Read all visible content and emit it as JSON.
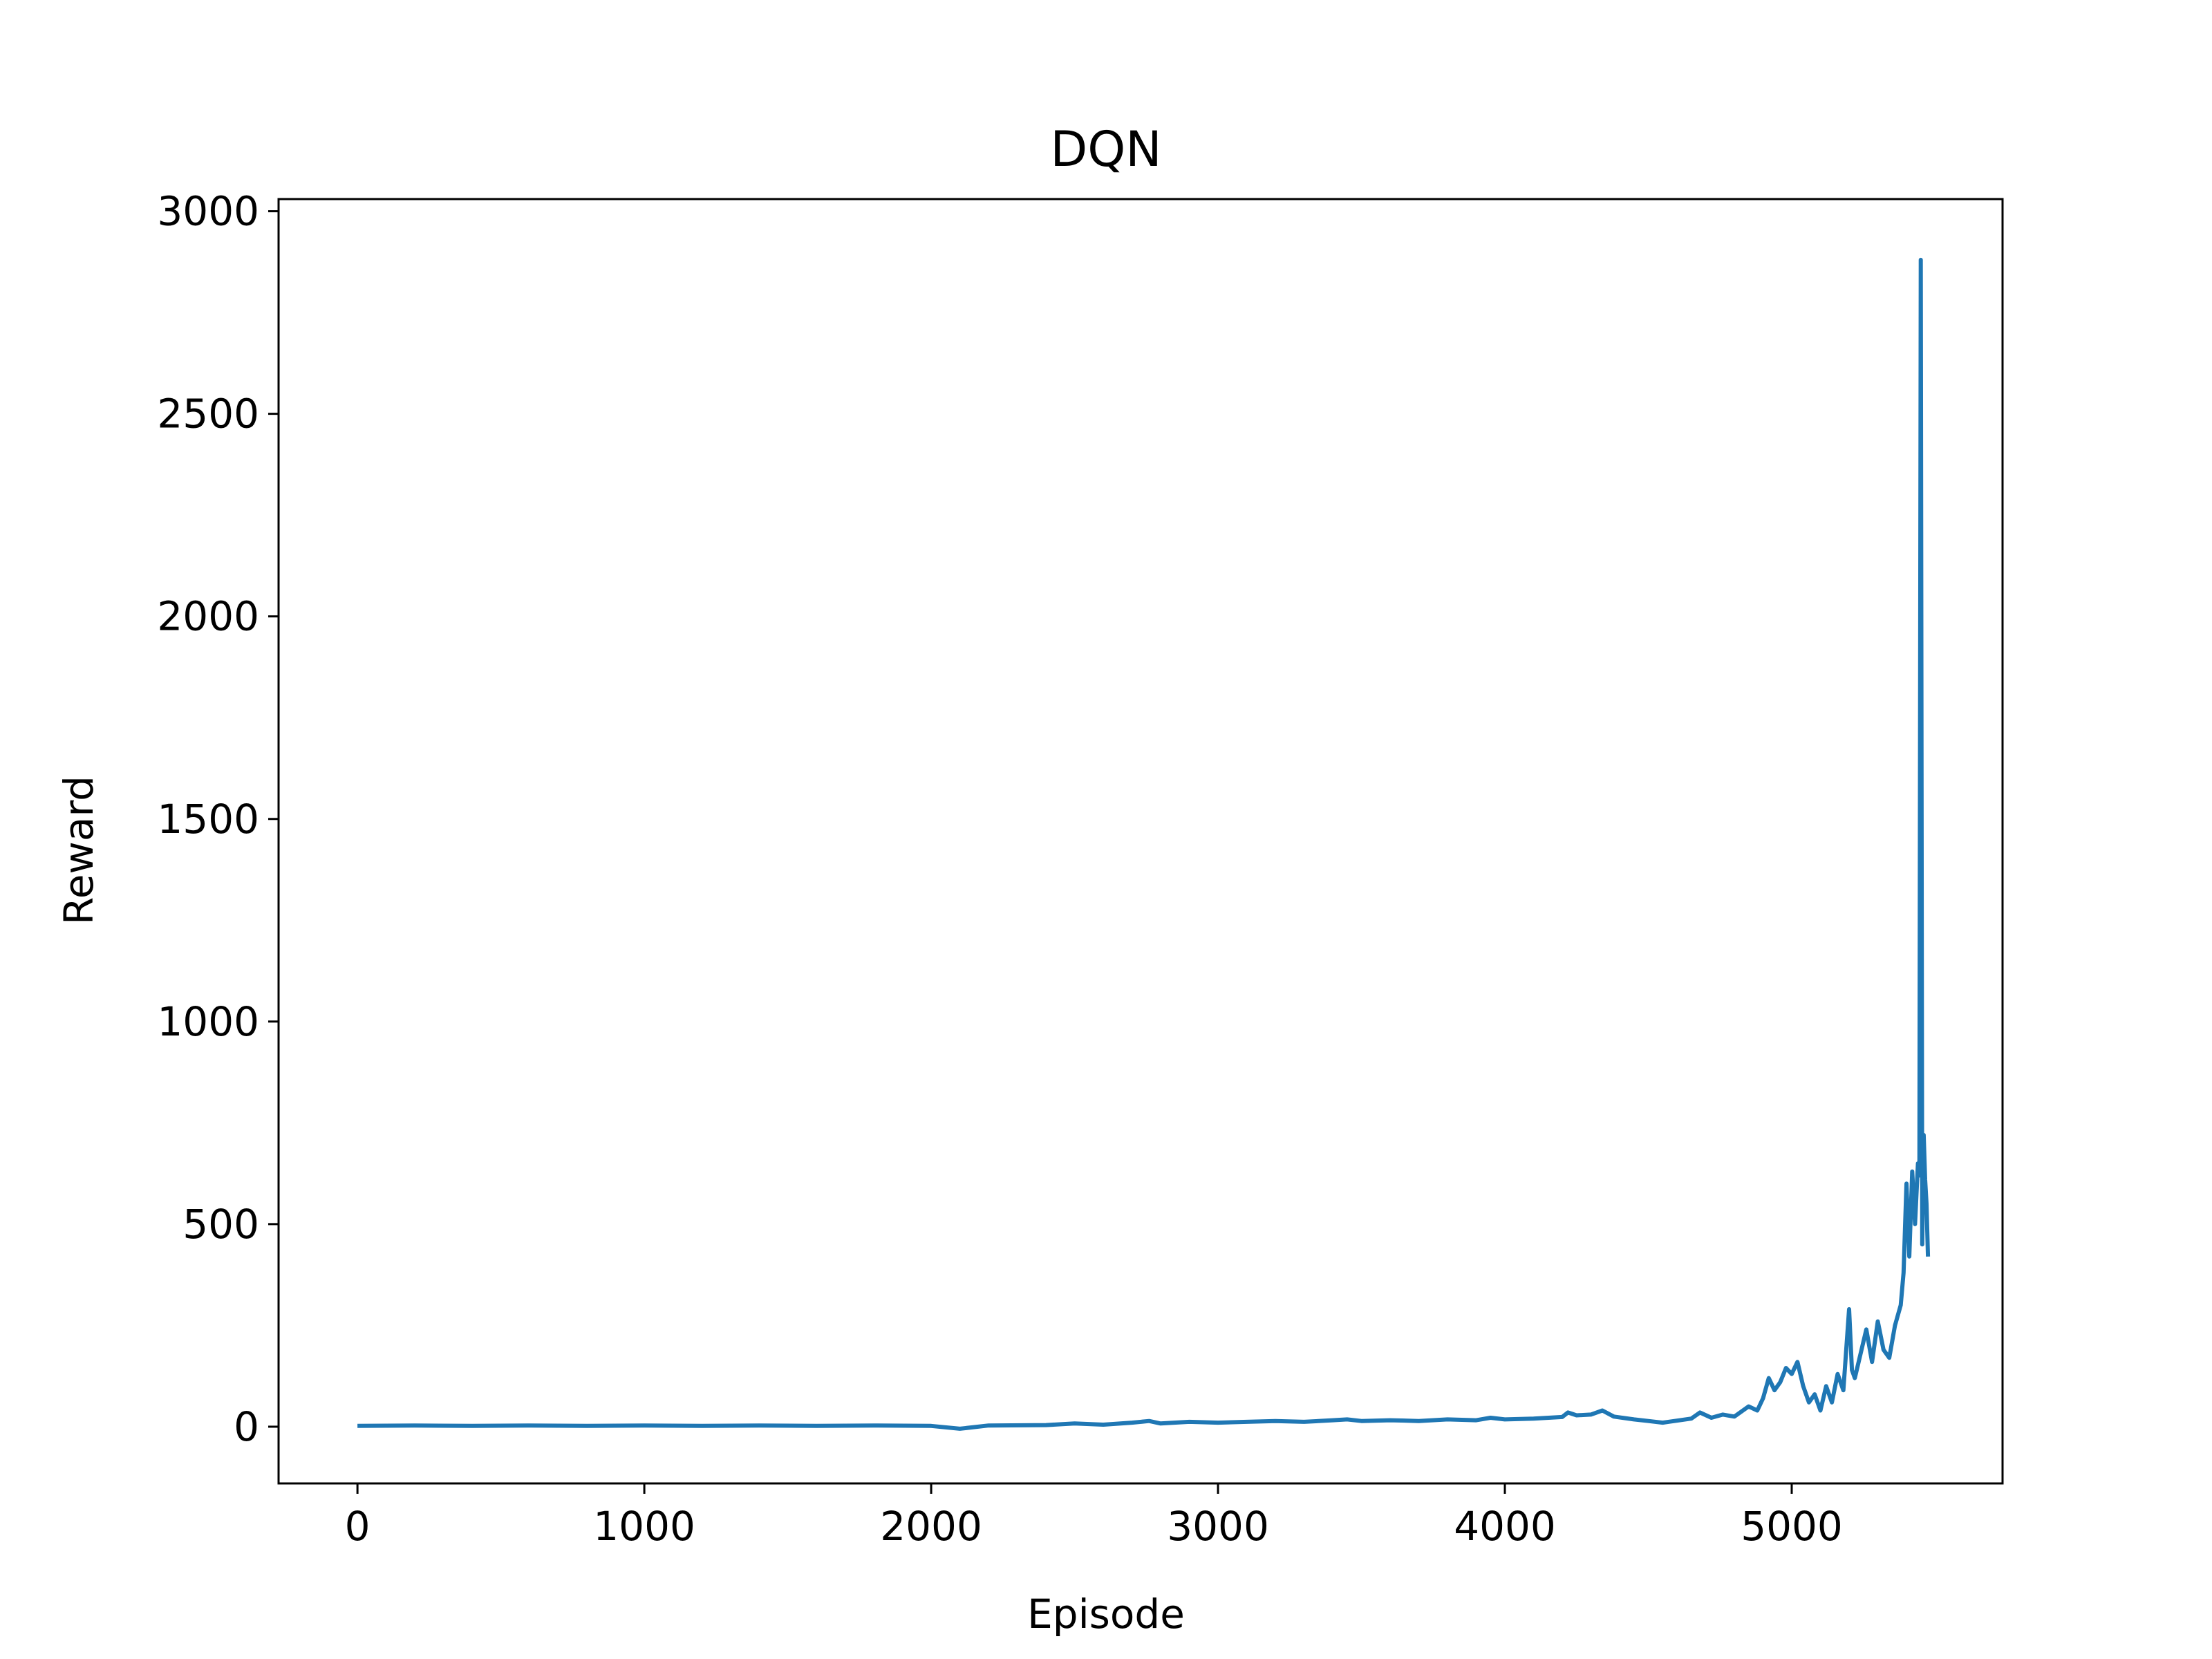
{
  "chart_data": {
    "type": "line",
    "title": "DQN",
    "xlabel": "Episode",
    "ylabel": "Reward",
    "xlim": [
      -275,
      5735
    ],
    "ylim": [
      -140,
      3030
    ],
    "xticks": [
      0,
      1000,
      2000,
      3000,
      4000,
      5000
    ],
    "yticks": [
      0,
      500,
      1000,
      1500,
      2000,
      2500,
      3000
    ],
    "xtick_labels": [
      "0",
      "1000",
      "2000",
      "3000",
      "4000",
      "5000"
    ],
    "ytick_labels": [
      "0",
      "500",
      "1000",
      "1500",
      "2000",
      "2500",
      "3000"
    ],
    "grid": false,
    "line_color": "#1f77b4",
    "series": [
      {
        "name": "Reward",
        "x": [
          0,
          200,
          400,
          600,
          800,
          1000,
          1200,
          1400,
          1600,
          1800,
          2000,
          2100,
          2200,
          2400,
          2500,
          2600,
          2700,
          2760,
          2800,
          2900,
          3000,
          3100,
          3200,
          3300,
          3400,
          3450,
          3500,
          3600,
          3700,
          3800,
          3900,
          3950,
          4000,
          4100,
          4200,
          4220,
          4250,
          4300,
          4340,
          4380,
          4450,
          4500,
          4550,
          4600,
          4650,
          4680,
          4720,
          4760,
          4800,
          4850,
          4880,
          4900,
          4920,
          4940,
          4960,
          4980,
          5000,
          5020,
          5040,
          5060,
          5080,
          5100,
          5120,
          5140,
          5160,
          5180,
          5200,
          5210,
          5220,
          5240,
          5260,
          5280,
          5300,
          5320,
          5340,
          5360,
          5380,
          5390,
          5400,
          5410,
          5420,
          5430,
          5440,
          5445,
          5450,
          5455,
          5460,
          5465,
          5470,
          5475
        ],
        "y": [
          2,
          3,
          2,
          3,
          2,
          3,
          2,
          3,
          2,
          3,
          2,
          -5,
          3,
          4,
          8,
          5,
          10,
          14,
          8,
          12,
          10,
          12,
          14,
          12,
          16,
          18,
          14,
          16,
          14,
          18,
          16,
          22,
          18,
          20,
          24,
          35,
          28,
          30,
          40,
          25,
          18,
          14,
          10,
          15,
          20,
          35,
          22,
          30,
          25,
          50,
          40,
          70,
          120,
          90,
          110,
          145,
          130,
          160,
          100,
          60,
          80,
          40,
          100,
          60,
          130,
          90,
          290,
          140,
          120,
          180,
          240,
          160,
          260,
          190,
          170,
          250,
          300,
          380,
          600,
          420,
          630,
          500,
          650,
          620,
          2880,
          450,
          720,
          610,
          550,
          420
        ]
      }
    ]
  }
}
